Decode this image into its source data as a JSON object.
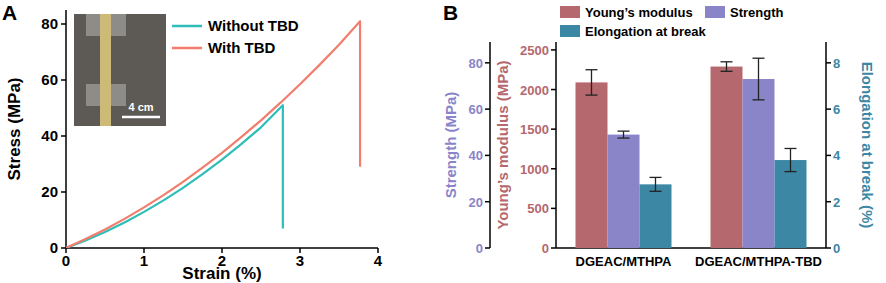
{
  "chart_data": [
    {
      "type": "line",
      "title": "A",
      "xlabel": "Strain (%)",
      "ylabel": "Stress (MPa)",
      "xlim": [
        0,
        4
      ],
      "xticks": [
        0,
        1,
        2,
        3,
        4
      ],
      "ylim": [
        0,
        85
      ],
      "yticks": [
        0,
        20,
        40,
        60,
        80
      ],
      "grid": false,
      "legend": "upper left",
      "annotations": [
        "4 cm"
      ],
      "series": [
        {
          "name": "Without TBD",
          "color": "#2ebdb8",
          "x": [
            0,
            0.25,
            0.5,
            0.75,
            1,
            1.25,
            1.5,
            1.75,
            2,
            2.25,
            2.5,
            2.78,
            2.78
          ],
          "values": [
            0,
            2.7,
            5.7,
            9.1,
            12.9,
            17.0,
            21.5,
            26.4,
            31.6,
            37.2,
            43.1,
            51,
            7
          ]
        },
        {
          "name": "With TBD",
          "color": "#f27d6e",
          "x": [
            0,
            0.25,
            0.5,
            0.75,
            1,
            1.25,
            1.5,
            1.75,
            2,
            2.25,
            2.5,
            2.75,
            3,
            3.25,
            3.5,
            3.77,
            3.77
          ],
          "values": [
            0,
            3.2,
            6.6,
            10.4,
            14.5,
            18.9,
            23.6,
            28.7,
            34,
            39.7,
            45.6,
            51.9,
            58.5,
            65.4,
            72.6,
            81,
            29
          ]
        }
      ]
    },
    {
      "type": "bar",
      "title": "B",
      "categories": [
        "DGEAC/MTHPA",
        "DGEAC/MTHPA-TBD"
      ],
      "ylabel": "Young’s modulus (MPa)",
      "ylim": [
        0,
        2600
      ],
      "yticks": [
        0,
        500,
        1000,
        1500,
        2000,
        2500
      ],
      "y3label": "Strength (MPa)",
      "y3lim": [
        0,
        89
      ],
      "y3ticks": [
        0,
        20,
        40,
        60,
        80
      ],
      "y2label": "Elongation at break (%)",
      "y2lim": [
        0,
        8.9
      ],
      "y2ticks": [
        0,
        2,
        4,
        6,
        8
      ],
      "grid": false,
      "legend": "upper left",
      "series": [
        {
          "name": "Young’s modulus",
          "color": "#b5686d",
          "axis": "y",
          "values": [
            2090,
            2290
          ],
          "errors": [
            160,
            60
          ]
        },
        {
          "name": "Strength",
          "color": "#8a84c9",
          "axis": "y3",
          "values": [
            49,
            73
          ],
          "errors": [
            1.5,
            9
          ]
        },
        {
          "name": "Elongation at break",
          "color": "#3c87a4",
          "axis": "y2",
          "values": [
            2.75,
            3.8
          ],
          "errors": [
            0.3,
            0.5
          ]
        }
      ]
    }
  ]
}
